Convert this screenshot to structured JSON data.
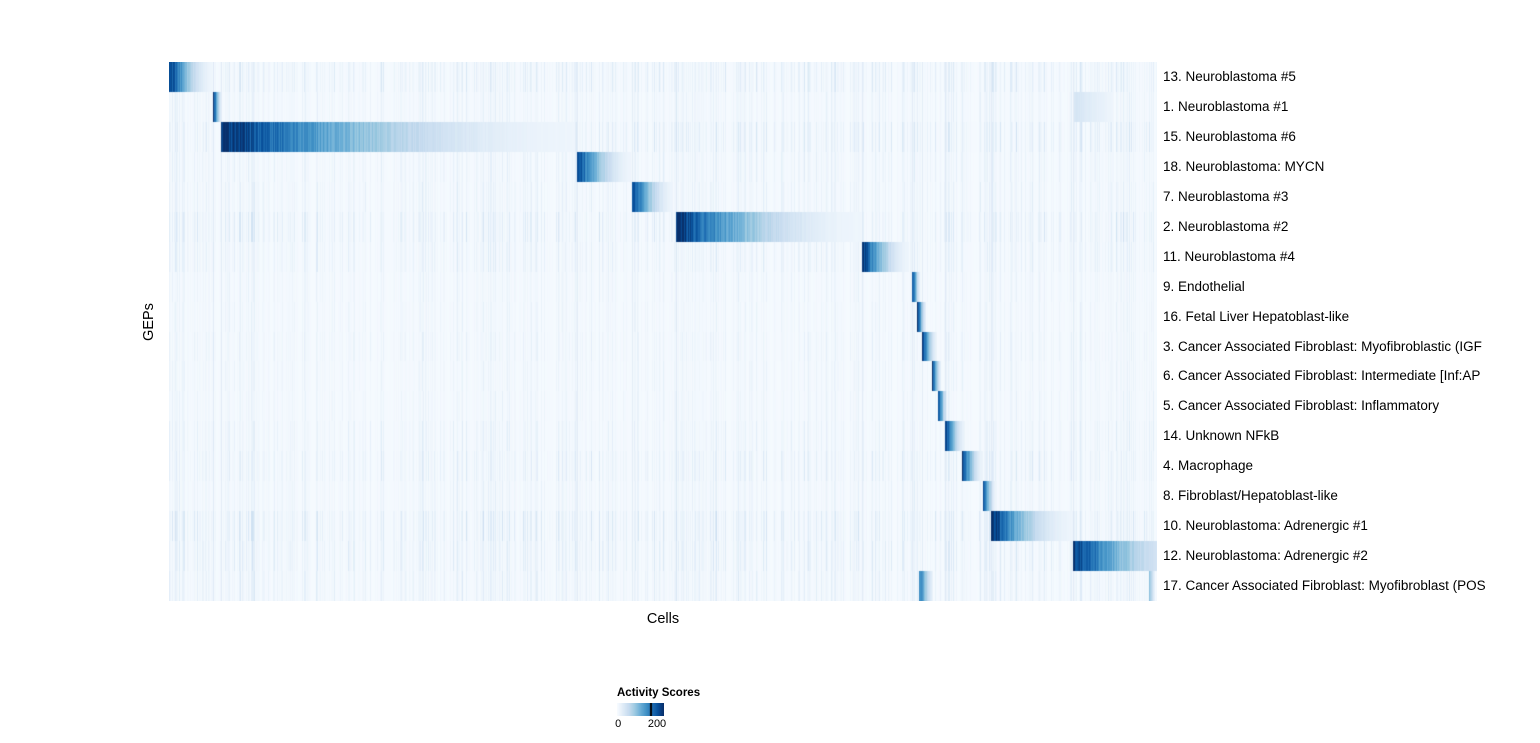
{
  "chart_data": {
    "type": "heatmap",
    "xlabel": "Cells",
    "ylabel": "GEPs",
    "colorbar": {
      "title": "Activity Scores",
      "min": 0,
      "max": 200,
      "min_label": "0",
      "max_label": "200"
    },
    "colormap_stops": [
      "#f7fbff",
      "#deebf7",
      "#c6dbef",
      "#9ecae1",
      "#6baed6",
      "#4292c6",
      "#2171b5",
      "#08519c",
      "#08306b"
    ],
    "value_scale_max": 210,
    "column_group_boundaries": [
      0.045,
      0.053,
      0.413,
      0.469,
      0.513,
      0.701,
      0.752,
      0.762,
      0.785,
      0.832,
      0.915
    ],
    "rows": [
      {
        "label": "13. Neuroblastoma #5",
        "blocks": [
          [
            0.0,
            0.044,
            210
          ]
        ],
        "noise": 1.0,
        "decay": 1.8
      },
      {
        "label": "1. Neuroblastoma #1",
        "blocks": [
          [
            0.045,
            0.053,
            200
          ],
          [
            0.916,
            0.955,
            35
          ]
        ],
        "noise": 0.6,
        "decay": 1.2
      },
      {
        "label": "15. Neuroblastoma #6",
        "blocks": [
          [
            0.053,
            0.41,
            210
          ]
        ],
        "noise": 1.1,
        "decay": 1.9
      },
      {
        "label": "18. Neuroblastoma: MYCN",
        "blocks": [
          [
            0.413,
            0.468,
            195
          ]
        ],
        "noise": 0.7,
        "decay": 1.8
      },
      {
        "label": "7. Neuroblastoma #3",
        "blocks": [
          [
            0.469,
            0.51,
            195
          ]
        ],
        "noise": 0.7,
        "decay": 1.8
      },
      {
        "label": "2. Neuroblastoma #2",
        "blocks": [
          [
            0.513,
            0.7,
            210
          ]
        ],
        "noise": 1.1,
        "decay": 2.0
      },
      {
        "label": "11. Neuroblastoma #4",
        "blocks": [
          [
            0.701,
            0.749,
            205
          ]
        ],
        "noise": 0.8,
        "decay": 1.8
      },
      {
        "label": "9. Endothelial",
        "blocks": [
          [
            0.752,
            0.76,
            195
          ]
        ],
        "noise": 0.5,
        "decay": 1.4
      },
      {
        "label": "16. Fetal Liver Hepatoblast-like",
        "blocks": [
          [
            0.757,
            0.766,
            195
          ]
        ],
        "noise": 0.5,
        "decay": 1.4
      },
      {
        "label": "3. Cancer Associated Fibroblast: Myofibroblastic (IGF",
        "blocks": [
          [
            0.762,
            0.777,
            205
          ]
        ],
        "noise": 0.6,
        "decay": 1.6
      },
      {
        "label": "6. Cancer Associated Fibroblast: Intermediate [Inf:AP",
        "blocks": [
          [
            0.772,
            0.781,
            195
          ]
        ],
        "noise": 0.5,
        "decay": 1.4
      },
      {
        "label": "5. Cancer Associated Fibroblast: Inflammatory",
        "blocks": [
          [
            0.778,
            0.787,
            195
          ]
        ],
        "noise": 0.5,
        "decay": 1.4
      },
      {
        "label": "14. Unknown NFkB",
        "blocks": [
          [
            0.785,
            0.806,
            200
          ]
        ],
        "noise": 0.7,
        "decay": 1.7
      },
      {
        "label": "4. Macrophage",
        "blocks": [
          [
            0.803,
            0.824,
            205
          ]
        ],
        "noise": 0.9,
        "decay": 1.7
      },
      {
        "label": "8. Fibroblast/Hepatoblast-like",
        "blocks": [
          [
            0.824,
            0.836,
            195
          ]
        ],
        "noise": 0.6,
        "decay": 1.5
      },
      {
        "label": "10. Neuroblastoma: Adrenergic #1",
        "blocks": [
          [
            0.832,
            0.916,
            210
          ]
        ],
        "noise": 1.2,
        "decay": 2.0
      },
      {
        "label": "12. Neuroblastoma: Adrenergic #2",
        "blocks": [
          [
            0.915,
            1.0,
            205
          ]
        ],
        "noise": 1.0,
        "decay": 1.4,
        "end": 40
      },
      {
        "label": "17. Cancer Associated Fibroblast: Myofibroblast (POS",
        "blocks": [
          [
            0.759,
            0.773,
            150
          ],
          [
            0.992,
            0.998,
            90
          ]
        ],
        "noise": 0.8,
        "decay": 1.2
      }
    ]
  }
}
